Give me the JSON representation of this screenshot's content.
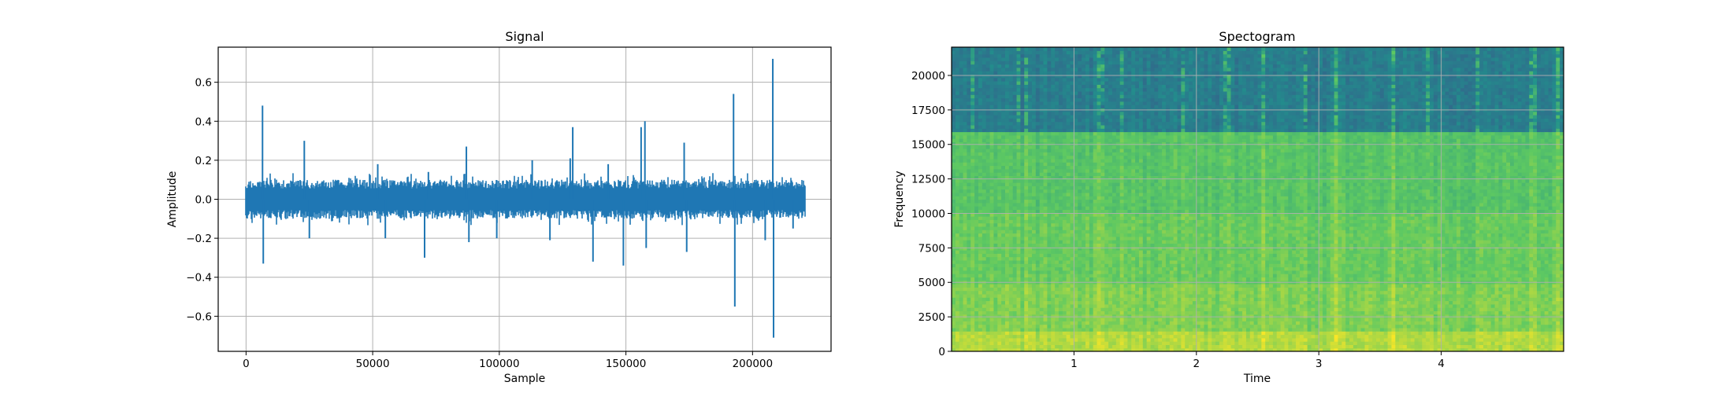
{
  "chart_data": [
    {
      "type": "line",
      "title": "Signal",
      "xlabel": "Sample",
      "ylabel": "Amplitude",
      "xlim": [
        -11000,
        231000
      ],
      "ylim": [
        -0.78,
        0.78
      ],
      "xticks": [
        0,
        50000,
        100000,
        150000,
        200000
      ],
      "xtick_labels": [
        "0",
        "50000",
        "100000",
        "150000",
        "200000"
      ],
      "yticks": [
        -0.6,
        -0.4,
        -0.2,
        0.0,
        0.2,
        0.4,
        0.6
      ],
      "ytick_labels": [
        "−0.6",
        "−0.4",
        "−0.2",
        "0.0",
        "0.2",
        "0.4",
        "0.6"
      ],
      "grid": true,
      "color": "#1f77b4",
      "n_samples": 220500,
      "noise_envelope": 0.1,
      "spikes": [
        {
          "x": 6500,
          "y": 0.48
        },
        {
          "x": 6800,
          "y": -0.33
        },
        {
          "x": 23000,
          "y": 0.3
        },
        {
          "x": 25000,
          "y": -0.2
        },
        {
          "x": 52000,
          "y": 0.18
        },
        {
          "x": 55000,
          "y": -0.2
        },
        {
          "x": 70500,
          "y": -0.3
        },
        {
          "x": 72000,
          "y": 0.14
        },
        {
          "x": 87000,
          "y": 0.27
        },
        {
          "x": 88000,
          "y": -0.22
        },
        {
          "x": 99000,
          "y": -0.2
        },
        {
          "x": 113000,
          "y": 0.2
        },
        {
          "x": 120000,
          "y": -0.21
        },
        {
          "x": 128000,
          "y": 0.21
        },
        {
          "x": 129000,
          "y": 0.37
        },
        {
          "x": 137000,
          "y": -0.32
        },
        {
          "x": 143000,
          "y": 0.18
        },
        {
          "x": 149000,
          "y": -0.34
        },
        {
          "x": 156000,
          "y": 0.37
        },
        {
          "x": 157500,
          "y": 0.4
        },
        {
          "x": 158000,
          "y": -0.25
        },
        {
          "x": 173000,
          "y": 0.29
        },
        {
          "x": 174000,
          "y": -0.27
        },
        {
          "x": 192500,
          "y": 0.54
        },
        {
          "x": 193000,
          "y": -0.55
        },
        {
          "x": 205000,
          "y": -0.21
        },
        {
          "x": 208000,
          "y": 0.72
        },
        {
          "x": 208300,
          "y": -0.71
        },
        {
          "x": 216000,
          "y": -0.15
        }
      ]
    },
    {
      "type": "heatmap",
      "title": "Spectogram",
      "xlabel": "Time",
      "ylabel": "Frequency",
      "xlim": [
        0,
        5.0
      ],
      "ylim": [
        0,
        22050
      ],
      "xticks": [
        1,
        2,
        3,
        4
      ],
      "xtick_labels": [
        "1",
        "2",
        "3",
        "4"
      ],
      "yticks": [
        0,
        2500,
        5000,
        7500,
        10000,
        12500,
        15000,
        17500,
        20000
      ],
      "ytick_labels": [
        "0",
        "2500",
        "5000",
        "7500",
        "10000",
        "12500",
        "15000",
        "17500",
        "20000"
      ],
      "grid": true,
      "colormap": "viridis",
      "cutoff_frequency": 16000,
      "bands": [
        {
          "freq_min": 0,
          "freq_max": 1500,
          "level": 0.88
        },
        {
          "freq_min": 1500,
          "freq_max": 5000,
          "level": 0.8
        },
        {
          "freq_min": 5000,
          "freq_max": 10000,
          "level": 0.76
        },
        {
          "freq_min": 10000,
          "freq_max": 16000,
          "level": 0.72
        },
        {
          "freq_min": 16000,
          "freq_max": 22050,
          "level": 0.42
        }
      ],
      "transients_time": [
        0.16,
        0.55,
        0.6,
        1.22,
        1.4,
        1.9,
        2.25,
        2.55,
        2.88,
        3.15,
        3.6,
        3.9,
        4.3,
        4.75,
        4.95
      ]
    }
  ]
}
